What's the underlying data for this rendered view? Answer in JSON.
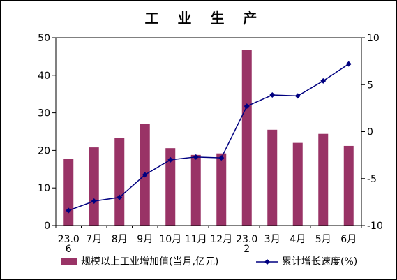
{
  "chart_data": {
    "type": "bar+line",
    "title": "工 业 生 产",
    "categories": [
      "23.0\n6",
      "7月",
      "8月",
      "9月",
      "10月",
      "11月",
      "12月",
      "23.0\n2",
      "3月",
      "4月",
      "5月",
      "6月"
    ],
    "left_axis": {
      "ylim": [
        0,
        50
      ],
      "ticks": [
        0,
        10,
        20,
        30,
        40,
        50
      ]
    },
    "right_axis": {
      "ylim": [
        -10,
        10
      ],
      "ticks": [
        -10,
        -5,
        0,
        5,
        10
      ]
    },
    "series": [
      {
        "name": "规模以上工业增加值(当月,亿元)",
        "type": "bar",
        "axis": "left",
        "color": "#993366",
        "values": [
          17.8,
          20.8,
          23.4,
          27.0,
          20.6,
          18.8,
          19.2,
          46.7,
          25.5,
          22.0,
          24.4,
          21.2
        ]
      },
      {
        "name": "累计增长速度(%)",
        "type": "line",
        "axis": "right",
        "color": "#000080",
        "marker": "diamond",
        "values": [
          -8.4,
          -7.4,
          -7.0,
          -4.6,
          -3.0,
          -2.7,
          -2.8,
          2.7,
          3.9,
          3.8,
          5.4,
          7.2
        ]
      }
    ],
    "legend_placement": "bottom",
    "grid": false
  }
}
